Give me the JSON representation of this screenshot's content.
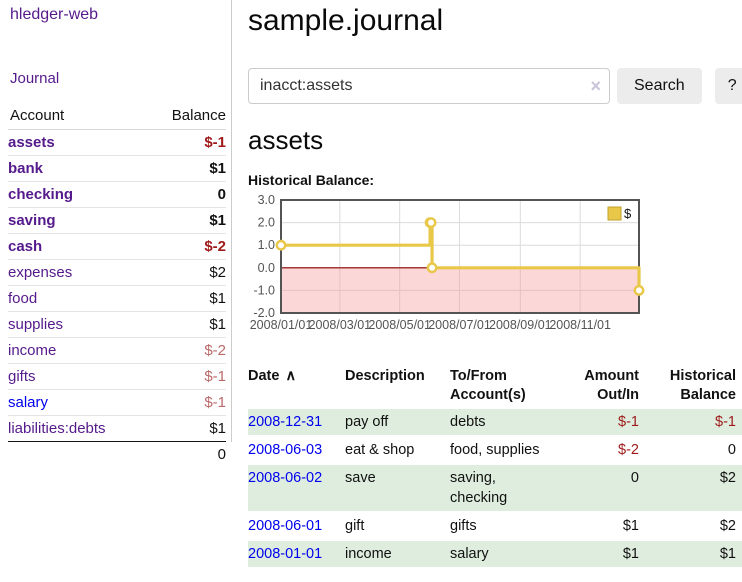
{
  "colors": {
    "accent_purple": "#551a8b",
    "link_blue": "#0000ee",
    "negative_strong": "#9e1a1a",
    "negative_muted": "#bb6a6a",
    "row_stripe_green": "#deedde",
    "chart_line_gold": "#e9c749",
    "chart_negative_fill": "#fcdada",
    "chart_zero_line": "#8b0000"
  },
  "sidebar": {
    "brand": "hledger-web",
    "nav": {
      "journal": "Journal"
    },
    "accounts_table": {
      "headers": {
        "account": "Account",
        "balance": "Balance"
      },
      "rows": [
        {
          "name": "assets",
          "depth": 1,
          "bold": true,
          "link_color": "purple",
          "balance": "$-1",
          "balance_style": "neg-strong"
        },
        {
          "name": "bank",
          "depth": 2,
          "bold": true,
          "link_color": "purple",
          "balance": "$1",
          "balance_style": "pos-strong"
        },
        {
          "name": "checking",
          "depth": 3,
          "bold": true,
          "link_color": "purple",
          "balance": "0",
          "balance_style": "pos-strong"
        },
        {
          "name": "saving",
          "depth": 3,
          "bold": true,
          "link_color": "purple",
          "balance": "$1",
          "balance_style": "pos-strong"
        },
        {
          "name": "cash",
          "depth": 2,
          "bold": true,
          "link_color": "purple",
          "balance": "$-2",
          "balance_style": "neg-strong"
        },
        {
          "name": "expenses",
          "depth": 1,
          "bold": false,
          "link_color": "purple",
          "balance": "$2",
          "balance_style": "pos"
        },
        {
          "name": "food",
          "depth": 2,
          "bold": false,
          "link_color": "purple",
          "balance": "$1",
          "balance_style": "pos"
        },
        {
          "name": "supplies",
          "depth": 2,
          "bold": false,
          "link_color": "purple",
          "balance": "$1",
          "balance_style": "pos"
        },
        {
          "name": "income",
          "depth": 1,
          "bold": false,
          "link_color": "purple",
          "balance": "$-2",
          "balance_style": "neg-muted"
        },
        {
          "name": "gifts",
          "depth": 2,
          "bold": false,
          "link_color": "purple",
          "balance": "$-1",
          "balance_style": "neg-muted"
        },
        {
          "name": "salary",
          "depth": 2,
          "bold": false,
          "link_color": "blue",
          "balance": "$-1",
          "balance_style": "neg-muted"
        },
        {
          "name": "liabilities:debts",
          "depth": 1,
          "bold": false,
          "link_color": "purple",
          "balance": "$1",
          "balance_style": "pos"
        }
      ],
      "total": "0"
    }
  },
  "header": {
    "title": "sample.journal"
  },
  "search": {
    "value": "inacct:assets",
    "clear_icon": "×",
    "search_button": "Search",
    "help_button": "?"
  },
  "account_page": {
    "heading": "assets",
    "chart_title": "Historical Balance:"
  },
  "chart_data": {
    "type": "line",
    "step": true,
    "title": "Historical Balance",
    "series": [
      {
        "name": "$",
        "color": "#e9c749",
        "points": [
          {
            "x": "2008-01-01",
            "y": 1
          },
          {
            "x": "2008-06-01",
            "y": 2
          },
          {
            "x": "2008-06-02",
            "y": 2
          },
          {
            "x": "2008-06-03",
            "y": 0
          },
          {
            "x": "2008-12-31",
            "y": -1
          }
        ]
      }
    ],
    "xlim": [
      "2008-01-01",
      "2008-12-31"
    ],
    "ylim": [
      -2,
      3
    ],
    "yticks": [
      "3.0",
      "2.0",
      "1.0",
      "0.0",
      "-1.0",
      "-2.0"
    ],
    "xticks": [
      "2008/01/01",
      "2008/03/01",
      "2008/05/01",
      "2008/07/01",
      "2008/09/01",
      "2008/11/01"
    ],
    "grid": true,
    "negative_region_shaded": true,
    "zero_line_color": "#8b0000",
    "legend": {
      "label": "$",
      "position": "top-right"
    }
  },
  "register_table": {
    "columns": [
      {
        "label": "Date",
        "sort_indicator": "∧",
        "align": "left"
      },
      {
        "label": "Description",
        "align": "left"
      },
      {
        "label": "To/From",
        "label2": "Account(s)",
        "align": "left"
      },
      {
        "label": "Amount",
        "label2": "Out/In",
        "align": "right"
      },
      {
        "label": "Historical",
        "label2": "Balance",
        "align": "right"
      }
    ],
    "rows": [
      {
        "date": "2008-12-31",
        "description": "pay off",
        "accounts_lines": [
          "debts"
        ],
        "amount": "$-1",
        "amount_neg": true,
        "balance": "$-1",
        "balance_neg": true,
        "shaded": true
      },
      {
        "date": "2008-06-03",
        "description": "eat & shop",
        "accounts_lines": [
          "food, supplies"
        ],
        "amount": "$-2",
        "amount_neg": true,
        "balance": "0",
        "balance_neg": false,
        "shaded": false
      },
      {
        "date": "2008-06-02",
        "description": "save",
        "accounts_lines": [
          "saving,",
          "checking"
        ],
        "amount": "0",
        "amount_neg": false,
        "balance": "$2",
        "balance_neg": false,
        "shaded": true
      },
      {
        "date": "2008-06-01",
        "description": "gift",
        "accounts_lines": [
          "gifts"
        ],
        "amount": "$1",
        "amount_neg": false,
        "balance": "$2",
        "balance_neg": false,
        "shaded": false
      },
      {
        "date": "2008-01-01",
        "description": "income",
        "accounts_lines": [
          "salary"
        ],
        "amount": "$1",
        "amount_neg": false,
        "balance": "$1",
        "balance_neg": false,
        "shaded": true
      }
    ]
  }
}
